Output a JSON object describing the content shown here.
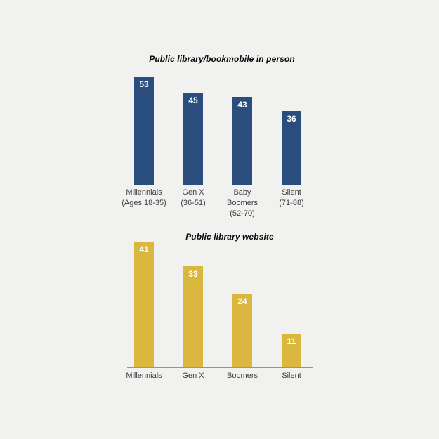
{
  "colors": {
    "background": "#f1f1f0",
    "axis_line": "#949494",
    "category_label_text": "#3d3d3d",
    "title_text": "#0a0a0a",
    "blue_bar": "#2a4d7d",
    "gold_bar": "#dab840",
    "value_label": "#ffffff"
  },
  "chart_data": [
    {
      "type": "bar",
      "title": "Public library/bookmobile in person",
      "categories": [
        "Millennials\n(Ages 18-35)",
        "Gen X\n(36-51)",
        "Baby\nBoomers\n(52-70)",
        "Silent\n(71-88)"
      ],
      "values": [
        53,
        45,
        43,
        36
      ],
      "bar_color": "#2a4d7d",
      "value_label_color": "#ffffff",
      "value_label_position": "inside-top",
      "xlabel": "",
      "ylabel": "",
      "ylim": [
        0,
        55
      ],
      "grid": false,
      "legend": "none",
      "axis_ticks": "none"
    },
    {
      "type": "bar",
      "title": "Public library website",
      "categories": [
        "Millennials",
        "Gen X",
        "Boomers",
        "Silent"
      ],
      "values": [
        41,
        33,
        24,
        11
      ],
      "bar_color": "#dab840",
      "value_label_color": "#ffffff",
      "value_label_position": "inside-top",
      "xlabel": "",
      "ylabel": "",
      "ylim": [
        0,
        42
      ],
      "grid": false,
      "legend": "none",
      "axis_ticks": "none"
    }
  ]
}
